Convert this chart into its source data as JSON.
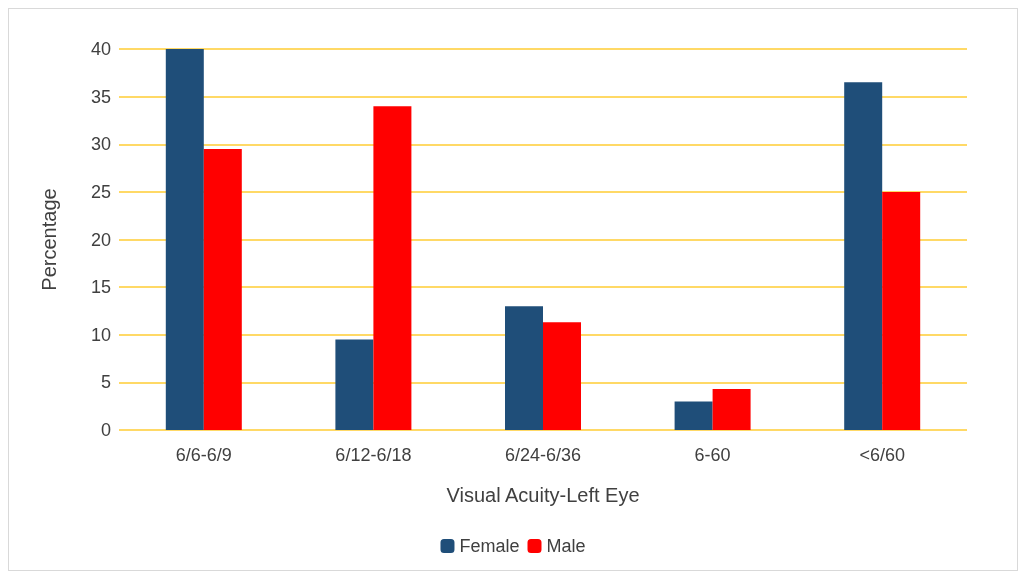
{
  "chart_data": {
    "type": "bar",
    "xlabel": "Visual Acuity-Left Eye",
    "ylabel": "Percentage",
    "categories": [
      "6/6-6/9",
      "6/12-6/18",
      "6/24-6/36",
      "6-60",
      "<6/60"
    ],
    "series": [
      {
        "name": "Female",
        "color": "#1f4e79",
        "values": [
          40,
          9.5,
          13,
          3,
          36.5
        ]
      },
      {
        "name": "Male",
        "color": "#ff0000",
        "values": [
          29.5,
          34,
          11.3,
          4.3,
          25
        ]
      }
    ],
    "ylim": [
      0,
      40
    ],
    "yticks": [
      0,
      5,
      10,
      15,
      20,
      25,
      30,
      35,
      40
    ],
    "grid": "y",
    "legend": "bottom"
  }
}
